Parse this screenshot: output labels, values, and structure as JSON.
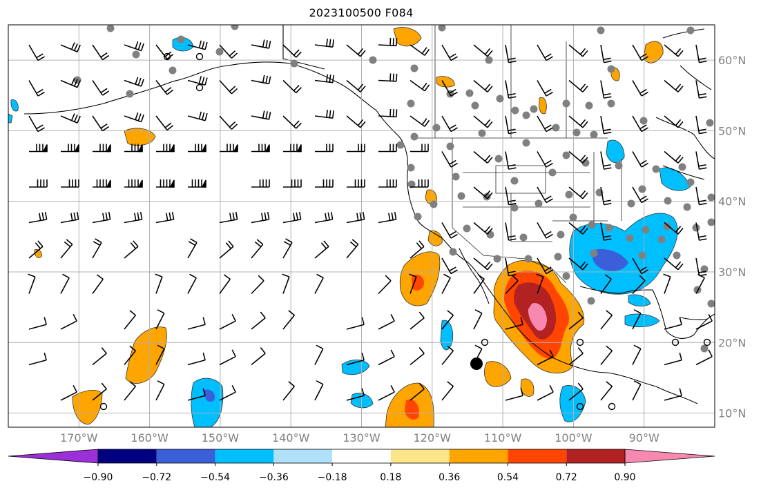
{
  "title": "2023100500 F084",
  "map": {
    "lon_range": [
      -180,
      -80
    ],
    "lat_range": [
      8,
      65
    ],
    "lon_ticks": [
      "170°W",
      "160°W",
      "150°W",
      "140°W",
      "130°W",
      "120°W",
      "110°W",
      "100°W",
      "90°W"
    ],
    "lon_tick_values": [
      -170,
      -160,
      -150,
      -140,
      -130,
      -120,
      -110,
      -100,
      -90
    ],
    "lat_ticks": [
      "60°N",
      "50°N",
      "40°N",
      "30°N",
      "20°N",
      "10°N"
    ],
    "lat_tick_values": [
      60,
      50,
      40,
      30,
      20,
      10
    ],
    "gridlines": true,
    "grid_color": "#b0b0b0",
    "tick_color": "#808080"
  },
  "colorbar": {
    "tick_labels": [
      "−0.90",
      "−0.72",
      "−0.54",
      "−0.36",
      "−0.18",
      "0.18",
      "0.36",
      "0.54",
      "0.72",
      "0.90"
    ],
    "colors": [
      "#9b30d9",
      "#000080",
      "#3a5fd9",
      "#00bfff",
      "#b0e0fa",
      "#ffffff",
      "#fde68a",
      "#ffa500",
      "#ff4500",
      "#b22222",
      "#f788b0"
    ]
  },
  "legend_colors": {
    "neg_light": "#b0e0fa",
    "neg_mid": "#00bfff",
    "neg_strong": "#3a5fd9",
    "pos_light": "#fde68a",
    "pos_mid": "#ffa500",
    "pos_strong": "#ff4500",
    "pos_deep": "#b22222",
    "pos_max": "#f788b0",
    "station_dot": "#808080"
  }
}
